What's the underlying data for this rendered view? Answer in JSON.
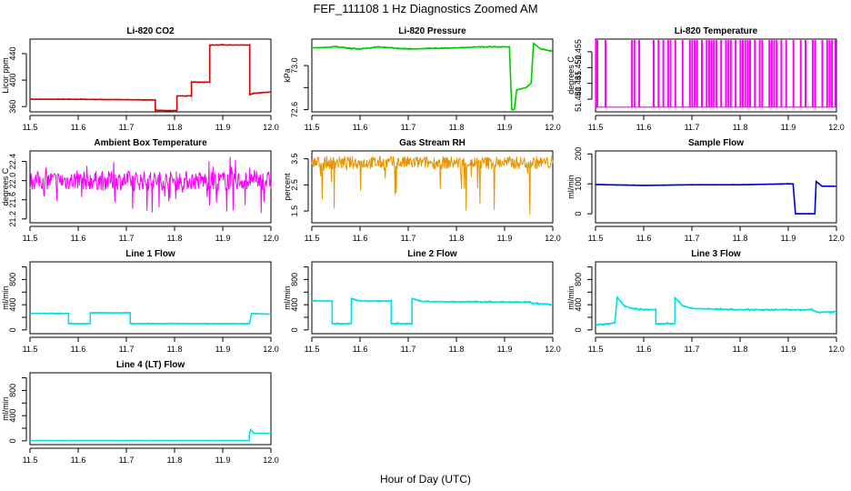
{
  "figure": {
    "title": "FEF_111108  1 Hz Diagnostics Zoomed AM",
    "xlabel": "Hour of Day (UTC)"
  },
  "chart_data": [
    {
      "type": "line",
      "title": "Li-820 CO2",
      "ylabel": "Licor ppm",
      "color": "#e00000",
      "xlim": [
        11.5,
        12.0
      ],
      "ylim": [
        352,
        462
      ],
      "xticks": [
        11.5,
        11.6,
        11.7,
        11.8,
        11.9,
        12.0
      ],
      "xtick_labels": [
        "11.5",
        "11.6",
        "11.7",
        "11.8",
        "11.9",
        "12.0"
      ],
      "yticks": [
        360,
        400,
        440
      ],
      "ytick_labels": [
        "360",
        "400",
        "440"
      ],
      "points": [
        [
          11.5,
          371
        ],
        [
          11.6,
          371
        ],
        [
          11.76,
          370
        ],
        [
          11.76,
          354
        ],
        [
          11.805,
          354
        ],
        [
          11.805,
          376
        ],
        [
          11.835,
          376
        ],
        [
          11.835,
          397
        ],
        [
          11.873,
          397
        ],
        [
          11.873,
          453
        ],
        [
          11.956,
          453
        ],
        [
          11.956,
          378
        ],
        [
          11.965,
          380
        ],
        [
          12.0,
          382
        ]
      ],
      "noise": 1
    },
    {
      "type": "line",
      "title": "Li-820 Pressure",
      "ylabel": "kPa",
      "color": "#00cc00",
      "xlim": [
        11.5,
        12.0
      ],
      "ylim": [
        72.58,
        73.24
      ],
      "xticks": [
        11.5,
        11.6,
        11.7,
        11.8,
        11.9,
        12.0
      ],
      "xtick_labels": [
        "11.5",
        "11.6",
        "11.7",
        "11.8",
        "11.9",
        "12.0"
      ],
      "yticks": [
        72.6,
        72.8,
        73.0
      ],
      "ytick_labels": [
        "72.6",
        "73.0"
      ],
      "points": [
        [
          11.5,
          73.16
        ],
        [
          11.55,
          73.17
        ],
        [
          11.6,
          73.15
        ],
        [
          11.64,
          73.17
        ],
        [
          11.7,
          73.15
        ],
        [
          11.8,
          73.16
        ],
        [
          11.85,
          73.17
        ],
        [
          11.91,
          73.17
        ],
        [
          11.915,
          72.6
        ],
        [
          11.92,
          72.6
        ],
        [
          11.925,
          72.78
        ],
        [
          11.945,
          72.8
        ],
        [
          11.955,
          72.84
        ],
        [
          11.96,
          73.2
        ],
        [
          11.975,
          73.15
        ],
        [
          12.0,
          73.13
        ]
      ],
      "noise": 0.008
    },
    {
      "type": "spikes",
      "title": "Li-820 Temperature",
      "ylabel": "degrees C",
      "color": "#ff00ff",
      "xlim": [
        11.5,
        12.0
      ],
      "ylim": [
        51.436,
        51.459
      ],
      "xticks": [
        11.5,
        11.6,
        11.7,
        11.8,
        11.9,
        12.0
      ],
      "xtick_labels": [
        "11.5",
        "11.6",
        "11.7",
        "11.8",
        "11.9",
        "12.0"
      ],
      "yticks": [
        51.44,
        51.445,
        51.45,
        51.455
      ],
      "ytick_labels": [
        "51.440",
        "51.445",
        "51.450",
        "51.455"
      ],
      "low": 51.4375,
      "high": 51.4585,
      "spike_x": [
        11.5,
        11.503,
        11.52,
        11.575,
        11.58,
        11.59,
        11.62,
        11.63,
        11.64,
        11.65,
        11.655,
        11.665,
        11.68,
        11.695,
        11.7,
        11.705,
        11.71,
        11.72,
        11.73,
        11.735,
        11.74,
        11.745,
        11.75,
        11.76,
        11.77,
        11.775,
        11.78,
        11.79,
        11.8,
        11.805,
        11.81,
        11.815,
        11.82,
        11.83,
        11.84,
        11.845,
        11.86,
        11.865,
        11.87,
        11.875,
        11.885,
        11.895,
        11.91,
        11.925,
        11.935,
        11.95,
        11.955,
        11.97,
        11.98,
        11.985,
        11.99,
        11.997
      ]
    },
    {
      "type": "band",
      "title": "Ambient Box Temperature",
      "ylabel": "degrees C",
      "color": "#ff00ff",
      "xlim": [
        11.5,
        12.0
      ],
      "ylim": [
        21.12,
        22.62
      ],
      "xticks": [
        11.5,
        11.6,
        11.7,
        11.8,
        11.9,
        12.0
      ],
      "xtick_labels": [
        "11.5",
        "11.6",
        "11.7",
        "11.8",
        "11.9",
        "12.0"
      ],
      "yticks": [
        21.2,
        21.6,
        22.0,
        22.4
      ],
      "ytick_labels": [
        "21.2",
        "21.6",
        "22.0",
        "22.4"
      ],
      "low": 21.8,
      "high": 22.2,
      "spike_low": 21.25,
      "spike_high": 22.55,
      "spike_dir": "both"
    },
    {
      "type": "band",
      "title": "Gas Stream RH",
      "ylabel": "percent",
      "color": "#e69500",
      "xlim": [
        11.5,
        12.0
      ],
      "ylim": [
        1.05,
        3.8
      ],
      "xticks": [
        11.5,
        11.6,
        11.7,
        11.8,
        11.9,
        12.0
      ],
      "xtick_labels": [
        "11.5",
        "11.6",
        "11.7",
        "11.8",
        "11.9",
        "12.0"
      ],
      "yticks": [
        1.5,
        2.5,
        3.5
      ],
      "ytick_labels": [
        "1.5",
        "2.5",
        "3.5"
      ],
      "low": 3.1,
      "high": 3.6,
      "spike_low": 1.2,
      "spike_high": 3.7,
      "spike_dir": "down"
    },
    {
      "type": "line",
      "title": "Sample Flow",
      "ylabel": "ml/min",
      "color": "#0000cc",
      "xlim": [
        11.5,
        12.0
      ],
      "ylim": [
        -30,
        210
      ],
      "xticks": [
        11.5,
        11.6,
        11.7,
        11.8,
        11.9,
        12.0
      ],
      "xtick_labels": [
        "11.5",
        "11.6",
        "11.7",
        "11.8",
        "11.9",
        "12.0"
      ],
      "yticks": [
        0,
        100,
        200
      ],
      "ytick_labels": [
        "0",
        "100",
        "200"
      ],
      "points": [
        [
          11.5,
          98
        ],
        [
          11.6,
          95
        ],
        [
          11.7,
          97
        ],
        [
          11.8,
          97
        ],
        [
          11.9,
          100
        ],
        [
          11.91,
          100
        ],
        [
          11.915,
          0
        ],
        [
          11.955,
          0
        ],
        [
          11.958,
          108
        ],
        [
          11.97,
          92
        ],
        [
          12.0,
          92
        ]
      ],
      "noise": 1.5
    },
    {
      "type": "line",
      "title": "Line 1 Flow",
      "ylabel": "ml/min",
      "color": "#00e0e8",
      "xlim": [
        11.5,
        12.0
      ],
      "ylim": [
        -60,
        1080
      ],
      "xticks": [
        11.5,
        11.6,
        11.7,
        11.8,
        11.9,
        12.0
      ],
      "xtick_labels": [
        "11.5",
        "11.6",
        "11.7",
        "11.8",
        "11.9",
        "12.0"
      ],
      "yticks": [
        0,
        200,
        400,
        600,
        800,
        1000
      ],
      "ytick_labels": [
        "0",
        "400",
        "800"
      ],
      "points": [
        [
          11.5,
          260
        ],
        [
          11.58,
          260
        ],
        [
          11.58,
          100
        ],
        [
          11.625,
          100
        ],
        [
          11.625,
          270
        ],
        [
          11.708,
          270
        ],
        [
          11.708,
          100
        ],
        [
          11.955,
          100
        ],
        [
          11.96,
          260
        ],
        [
          12.0,
          250
        ]
      ],
      "noise": 12
    },
    {
      "type": "line",
      "title": "Line 2 Flow",
      "ylabel": "ml/min",
      "color": "#00e0e8",
      "xlim": [
        11.5,
        12.0
      ],
      "ylim": [
        -60,
        1080
      ],
      "xticks": [
        11.5,
        11.6,
        11.7,
        11.8,
        11.9,
        12.0
      ],
      "xtick_labels": [
        "11.5",
        "11.6",
        "11.7",
        "11.8",
        "11.9",
        "12.0"
      ],
      "yticks": [
        0,
        200,
        400,
        600,
        800,
        1000
      ],
      "ytick_labels": [
        "0",
        "400",
        "800"
      ],
      "points": [
        [
          11.5,
          460
        ],
        [
          11.542,
          460
        ],
        [
          11.542,
          100
        ],
        [
          11.582,
          100
        ],
        [
          11.582,
          500
        ],
        [
          11.6,
          460
        ],
        [
          11.665,
          460
        ],
        [
          11.665,
          100
        ],
        [
          11.708,
          100
        ],
        [
          11.708,
          500
        ],
        [
          11.73,
          450
        ],
        [
          11.95,
          440
        ],
        [
          11.96,
          420
        ],
        [
          12.0,
          400
        ]
      ],
      "noise": 18
    },
    {
      "type": "line",
      "title": "Line 3 Flow",
      "ylabel": "ml/min",
      "color": "#00e0e8",
      "xlim": [
        11.5,
        12.0
      ],
      "ylim": [
        -60,
        1080
      ],
      "xticks": [
        11.5,
        11.6,
        11.7,
        11.8,
        11.9,
        12.0
      ],
      "xtick_labels": [
        "11.5",
        "11.6",
        "11.7",
        "11.8",
        "11.9",
        "12.0"
      ],
      "yticks": [
        0,
        200,
        400,
        600,
        800,
        1000
      ],
      "ytick_labels": [
        "0",
        "400",
        "800"
      ],
      "points": [
        [
          11.5,
          80
        ],
        [
          11.54,
          110
        ],
        [
          11.54,
          100
        ],
        [
          11.545,
          520
        ],
        [
          11.56,
          380
        ],
        [
          11.58,
          330
        ],
        [
          11.625,
          320
        ],
        [
          11.625,
          100
        ],
        [
          11.665,
          100
        ],
        [
          11.665,
          510
        ],
        [
          11.68,
          390
        ],
        [
          11.7,
          340
        ],
        [
          11.8,
          320
        ],
        [
          11.95,
          320
        ],
        [
          11.96,
          280
        ],
        [
          12.0,
          290
        ]
      ],
      "noise": 20
    },
    {
      "type": "line",
      "title": "Line 4 (LT) Flow",
      "ylabel": "ml/min",
      "color": "#00e0e8",
      "xlim": [
        11.5,
        12.0
      ],
      "ylim": [
        -60,
        1080
      ],
      "xticks": [
        11.5,
        11.6,
        11.7,
        11.8,
        11.9,
        12.0
      ],
      "xtick_labels": [
        "11.5",
        "11.6",
        "11.7",
        "11.8",
        "11.9",
        "12.0"
      ],
      "yticks": [
        0,
        200,
        400,
        600,
        800,
        1000
      ],
      "ytick_labels": [
        "0",
        "400",
        "800"
      ],
      "points": [
        [
          11.5,
          5
        ],
        [
          11.955,
          5
        ],
        [
          11.955,
          100
        ],
        [
          11.958,
          180
        ],
        [
          11.965,
          120
        ],
        [
          12.0,
          120
        ]
      ],
      "noise": 2
    }
  ]
}
